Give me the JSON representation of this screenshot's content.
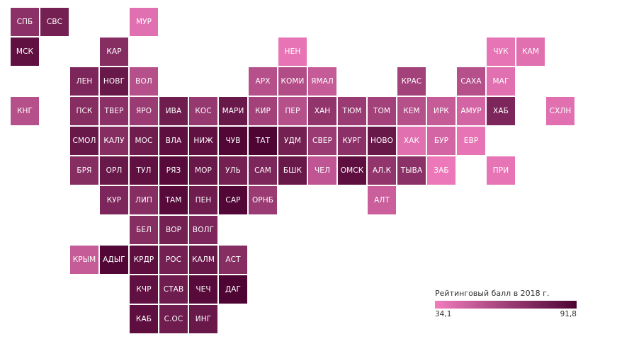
{
  "chart_data": {
    "type": "heatmap",
    "subtype": "tile-grid-map",
    "legend": {
      "title": "Рейтинговый балл в 2018 г.",
      "min_label": "34,1",
      "max_label": "91,8",
      "min": 34.1,
      "max": 91.8,
      "placement": "bottom-right"
    },
    "colors": {
      "low": "#f27cbe",
      "high": "#4d0332"
    },
    "tiles": [
      {
        "label": "СПБ",
        "col": 0,
        "row": 0,
        "value": 70
      },
      {
        "label": "СВС",
        "col": 1,
        "row": 0,
        "value": 78
      },
      {
        "label": "МУР",
        "col": 4,
        "row": 0,
        "value": 40
      },
      {
        "label": "МСК",
        "col": 0,
        "row": 1,
        "value": 85
      },
      {
        "label": "КАР",
        "col": 3,
        "row": 1,
        "value": 72
      },
      {
        "label": "НЕН",
        "col": 9,
        "row": 1,
        "value": 38
      },
      {
        "label": "ЧУК",
        "col": 16,
        "row": 1,
        "value": 38
      },
      {
        "label": "КАМ",
        "col": 17,
        "row": 1,
        "value": 40
      },
      {
        "label": "ЛЕН",
        "col": 2,
        "row": 2,
        "value": 75
      },
      {
        "label": "НОВГ",
        "col": 3,
        "row": 2,
        "value": 82
      },
      {
        "label": "ВОЛ",
        "col": 4,
        "row": 2,
        "value": 55
      },
      {
        "label": "АРХ",
        "col": 8,
        "row": 2,
        "value": 55
      },
      {
        "label": "КОМИ",
        "col": 9,
        "row": 2,
        "value": 57
      },
      {
        "label": "ЯМАЛ",
        "col": 10,
        "row": 2,
        "value": 50
      },
      {
        "label": "КРАС",
        "col": 13,
        "row": 2,
        "value": 62
      },
      {
        "label": "САХА",
        "col": 15,
        "row": 2,
        "value": 55
      },
      {
        "label": "МАГ",
        "col": 16,
        "row": 2,
        "value": 40
      },
      {
        "label": "КНГ",
        "col": 0,
        "row": 3,
        "value": 55
      },
      {
        "label": "ПСК",
        "col": 2,
        "row": 3,
        "value": 72
      },
      {
        "label": "ТВЕР",
        "col": 3,
        "row": 3,
        "value": 70
      },
      {
        "label": "ЯРО",
        "col": 4,
        "row": 3,
        "value": 65
      },
      {
        "label": "ИВА",
        "col": 5,
        "row": 3,
        "value": 80
      },
      {
        "label": "КОС",
        "col": 6,
        "row": 3,
        "value": 66
      },
      {
        "label": "МАРИ",
        "col": 7,
        "row": 3,
        "value": 82
      },
      {
        "label": "КИР",
        "col": 8,
        "row": 3,
        "value": 62
      },
      {
        "label": "ПЕР",
        "col": 9,
        "row": 3,
        "value": 55
      },
      {
        "label": "ХАН",
        "col": 10,
        "row": 3,
        "value": 68
      },
      {
        "label": "ТЮМ",
        "col": 11,
        "row": 3,
        "value": 65
      },
      {
        "label": "ТОМ",
        "col": 12,
        "row": 3,
        "value": 62
      },
      {
        "label": "КЕМ",
        "col": 13,
        "row": 3,
        "value": 55
      },
      {
        "label": "ИРК",
        "col": 14,
        "row": 3,
        "value": 50
      },
      {
        "label": "АМУР",
        "col": 15,
        "row": 3,
        "value": 45
      },
      {
        "label": "ХАБ",
        "col": 16,
        "row": 3,
        "value": 75
      },
      {
        "label": "СХЛН",
        "col": 18,
        "row": 3,
        "value": 40
      },
      {
        "label": "СМОЛ",
        "col": 2,
        "row": 4,
        "value": 82
      },
      {
        "label": "КАЛУ",
        "col": 3,
        "row": 4,
        "value": 72
      },
      {
        "label": "МОС",
        "col": 4,
        "row": 4,
        "value": 80
      },
      {
        "label": "ВЛА",
        "col": 5,
        "row": 4,
        "value": 86
      },
      {
        "label": "НИЖ",
        "col": 6,
        "row": 4,
        "value": 85
      },
      {
        "label": "ЧУВ",
        "col": 7,
        "row": 4,
        "value": 90
      },
      {
        "label": "ТАТ",
        "col": 8,
        "row": 4,
        "value": 91
      },
      {
        "label": "УДМ",
        "col": 9,
        "row": 4,
        "value": 78
      },
      {
        "label": "СВЕР",
        "col": 10,
        "row": 4,
        "value": 65
      },
      {
        "label": "КУРГ",
        "col": 11,
        "row": 4,
        "value": 70
      },
      {
        "label": "НОВО",
        "col": 12,
        "row": 4,
        "value": 82
      },
      {
        "label": "ХАК",
        "col": 13,
        "row": 4,
        "value": 40
      },
      {
        "label": "БУР",
        "col": 14,
        "row": 4,
        "value": 45
      },
      {
        "label": "ЕВР",
        "col": 15,
        "row": 4,
        "value": 38
      },
      {
        "label": "БРЯ",
        "col": 2,
        "row": 5,
        "value": 72
      },
      {
        "label": "ОРЛ",
        "col": 3,
        "row": 5,
        "value": 82
      },
      {
        "label": "ТУЛ",
        "col": 4,
        "row": 5,
        "value": 85
      },
      {
        "label": "РЯЗ",
        "col": 5,
        "row": 5,
        "value": 88
      },
      {
        "label": "МОР",
        "col": 6,
        "row": 5,
        "value": 82
      },
      {
        "label": "УЛЬ",
        "col": 7,
        "row": 5,
        "value": 78
      },
      {
        "label": "САМ",
        "col": 8,
        "row": 5,
        "value": 75
      },
      {
        "label": "БШК",
        "col": 9,
        "row": 5,
        "value": 82
      },
      {
        "label": "ЧЕЛ",
        "col": 10,
        "row": 5,
        "value": 52
      },
      {
        "label": "ОМСК",
        "col": 11,
        "row": 5,
        "value": 86
      },
      {
        "label": "АЛ.К",
        "col": 12,
        "row": 5,
        "value": 68
      },
      {
        "label": "ТЫВА",
        "col": 13,
        "row": 5,
        "value": 70
      },
      {
        "label": "ЗАБ",
        "col": 14,
        "row": 5,
        "value": 36
      },
      {
        "label": "ПРИ",
        "col": 16,
        "row": 5,
        "value": 38
      },
      {
        "label": "КУР",
        "col": 3,
        "row": 6,
        "value": 75
      },
      {
        "label": "ЛИП",
        "col": 4,
        "row": 6,
        "value": 72
      },
      {
        "label": "ТАМ",
        "col": 5,
        "row": 6,
        "value": 88
      },
      {
        "label": "ПЕН",
        "col": 6,
        "row": 6,
        "value": 80
      },
      {
        "label": "САР",
        "col": 7,
        "row": 6,
        "value": 90
      },
      {
        "label": "ОРНБ",
        "col": 8,
        "row": 6,
        "value": 65
      },
      {
        "label": "АЛТ",
        "col": 12,
        "row": 6,
        "value": 48
      },
      {
        "label": "БЕЛ",
        "col": 4,
        "row": 7,
        "value": 72
      },
      {
        "label": "ВОР",
        "col": 5,
        "row": 7,
        "value": 78
      },
      {
        "label": "ВОЛГ",
        "col": 6,
        "row": 7,
        "value": 75
      },
      {
        "label": "КРЫМ",
        "col": 2,
        "row": 8,
        "value": 50
      },
      {
        "label": "АДЫГ",
        "col": 3,
        "row": 8,
        "value": 90
      },
      {
        "label": "КРДР",
        "col": 4,
        "row": 8,
        "value": 86
      },
      {
        "label": "РОС",
        "col": 5,
        "row": 8,
        "value": 78
      },
      {
        "label": "КАЛМ",
        "col": 6,
        "row": 8,
        "value": 82
      },
      {
        "label": "АСТ",
        "col": 7,
        "row": 8,
        "value": 72
      },
      {
        "label": "КЧР",
        "col": 4,
        "row": 9,
        "value": 85
      },
      {
        "label": "СТАВ",
        "col": 5,
        "row": 9,
        "value": 80
      },
      {
        "label": "ЧЕЧ",
        "col": 6,
        "row": 9,
        "value": 88
      },
      {
        "label": "ДАГ",
        "col": 7,
        "row": 9,
        "value": 91
      },
      {
        "label": "КАБ",
        "col": 4,
        "row": 10,
        "value": 86
      },
      {
        "label": "С.ОС",
        "col": 5,
        "row": 10,
        "value": 80
      },
      {
        "label": "ИНГ",
        "col": 6,
        "row": 10,
        "value": 82
      }
    ]
  }
}
